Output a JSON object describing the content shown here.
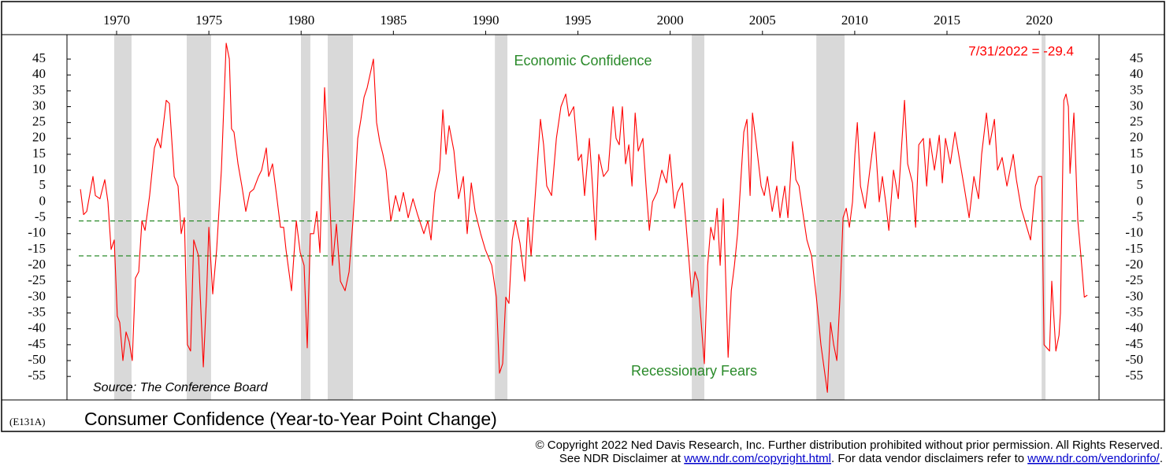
{
  "chart_data": {
    "type": "line",
    "title": "Consumer Confidence (Year-to-Year Point Change)",
    "chart_code": "(E131A)",
    "source": "Source: The Conference Board",
    "annotations": {
      "upper": "Economic Confidence",
      "lower": "Recessionary Fears",
      "latest": "7/31/2022 = -29.4"
    },
    "color": "#ff0000",
    "xlim": [
      1967.31,
      2023.24
    ],
    "ylim": [
      -62.4,
      52.7
    ],
    "xticks": [
      1970,
      1975,
      1980,
      1985,
      1990,
      1995,
      2000,
      2005,
      2010,
      2015,
      2020
    ],
    "yticks": [
      45,
      40,
      35,
      30,
      25,
      20,
      15,
      10,
      5,
      0,
      -5,
      -10,
      -15,
      -20,
      -25,
      -30,
      -35,
      -40,
      -45,
      -50,
      -55
    ],
    "reference_lines": [
      -6,
      -17
    ],
    "recessions": [
      [
        1969.87,
        1970.81
      ],
      [
        1973.8,
        1975.12
      ],
      [
        1979.99,
        1980.5
      ],
      [
        1981.44,
        1982.81
      ],
      [
        1990.5,
        1991.18
      ],
      [
        2001.17,
        2001.85
      ],
      [
        2007.92,
        2009.45
      ],
      [
        2020.13,
        2020.34
      ]
    ],
    "x": [
      1968.04,
      1968.21,
      1968.38,
      1968.72,
      1968.85,
      1969.1,
      1969.36,
      1969.53,
      1969.7,
      1969.87,
      1970.04,
      1970.17,
      1970.34,
      1970.51,
      1970.68,
      1970.85,
      1971.02,
      1971.2,
      1971.37,
      1971.54,
      1971.79,
      1972.05,
      1972.22,
      1972.39,
      1972.69,
      1972.86,
      1973.12,
      1973.33,
      1973.5,
      1973.67,
      1973.84,
      1974.01,
      1974.18,
      1974.44,
      1974.7,
      1974.87,
      1975.0,
      1975.21,
      1975.42,
      1975.68,
      1975.94,
      1976.11,
      1976.23,
      1976.36,
      1976.58,
      1976.79,
      1977.0,
      1977.22,
      1977.43,
      1977.69,
      1977.86,
      1978.11,
      1978.24,
      1978.45,
      1978.67,
      1978.88,
      1979.05,
      1979.18,
      1979.48,
      1979.74,
      1979.95,
      1980.16,
      1980.33,
      1980.5,
      1980.68,
      1980.85,
      1981.02,
      1981.27,
      1981.44,
      1981.7,
      1981.91,
      1982.13,
      1982.38,
      1982.6,
      1982.81,
      1983.07,
      1983.24,
      1983.41,
      1983.58,
      1983.92,
      1984.09,
      1984.26,
      1984.43,
      1984.6,
      1984.86,
      1985.12,
      1985.33,
      1985.54,
      1985.8,
      1986.06,
      1986.31,
      1986.65,
      1986.87,
      1987.04,
      1987.25,
      1987.51,
      1987.68,
      1987.85,
      1988.02,
      1988.28,
      1988.53,
      1988.79,
      1989.0,
      1989.22,
      1989.43,
      1989.73,
      1989.98,
      1990.33,
      1990.58,
      1990.75,
      1990.92,
      1991.09,
      1991.26,
      1991.44,
      1991.61,
      1991.86,
      1992.12,
      1992.29,
      1992.46,
      1992.72,
      1992.97,
      1993.14,
      1993.31,
      1993.57,
      1993.83,
      1994.08,
      1994.34,
      1994.51,
      1994.77,
      1995.02,
      1995.19,
      1995.36,
      1995.62,
      1995.79,
      1995.96,
      1996.13,
      1996.39,
      1996.64,
      1996.9,
      1997.07,
      1997.24,
      1997.41,
      1997.58,
      1997.76,
      1997.93,
      1998.1,
      1998.27,
      1998.52,
      1998.69,
      1998.87,
      1999.04,
      1999.29,
      1999.55,
      1999.8,
      1999.98,
      2000.23,
      2000.4,
      2000.66,
      2000.83,
      2001.04,
      2001.17,
      2001.34,
      2001.51,
      2001.68,
      2001.85,
      2002.03,
      2002.2,
      2002.37,
      2002.54,
      2002.71,
      2002.88,
      2003.14,
      2003.31,
      2003.48,
      2003.65,
      2003.82,
      2003.99,
      2004.16,
      2004.33,
      2004.46,
      2004.67,
      2004.93,
      2005.1,
      2005.27,
      2005.53,
      2005.78,
      2005.95,
      2006.21,
      2006.38,
      2006.64,
      2006.81,
      2006.98,
      2007.23,
      2007.41,
      2007.66,
      2007.92,
      2008.17,
      2008.52,
      2008.69,
      2008.86,
      2009.03,
      2009.2,
      2009.37,
      2009.54,
      2009.71,
      2009.88,
      2010.01,
      2010.14,
      2010.31,
      2010.57,
      2010.82,
      2011.08,
      2011.33,
      2011.5,
      2011.68,
      2011.85,
      2012.1,
      2012.36,
      2012.7,
      2012.87,
      2013.13,
      2013.3,
      2013.47,
      2013.72,
      2013.9,
      2014.07,
      2014.32,
      2014.58,
      2014.75,
      2014.92,
      2015.18,
      2015.43,
      2015.69,
      2015.95,
      2016.2,
      2016.46,
      2016.71,
      2016.88,
      2017.14,
      2017.31,
      2017.57,
      2017.74,
      2017.99,
      2018.25,
      2018.59,
      2018.76,
      2019.02,
      2019.28,
      2019.53,
      2019.79,
      2019.96,
      2020.13,
      2020.26,
      2020.56,
      2020.68,
      2020.9,
      2021.07,
      2021.15,
      2021.33,
      2021.45,
      2021.58,
      2021.67,
      2021.88,
      2022.09,
      2022.26,
      2022.44,
      2022.61
    ],
    "values": [
      4,
      -4,
      -3,
      8,
      2,
      1,
      7,
      0,
      -15,
      -12,
      -36,
      -38,
      -50,
      -41,
      -44,
      -50,
      -24,
      -22,
      -6,
      -9,
      2,
      17,
      20,
      17,
      32,
      31,
      8,
      5,
      -10,
      -5,
      -45,
      -47,
      -12,
      -17,
      -52,
      -30,
      -8,
      -29,
      -15,
      10,
      50,
      45,
      23,
      22,
      12,
      5,
      -3,
      3,
      4,
      8,
      10,
      17,
      8,
      12,
      2,
      -8,
      -8,
      -15,
      -28,
      -6,
      -16,
      -20,
      -46,
      -10,
      -10,
      -3,
      -16,
      36,
      17,
      -20,
      -7,
      -25,
      -28,
      -22,
      -6,
      20,
      26,
      33,
      36,
      45,
      25,
      19,
      15,
      10,
      -6,
      2,
      -3,
      3,
      -5,
      1,
      -4,
      -10,
      -6,
      -12,
      3,
      10,
      29,
      15,
      24,
      16,
      1,
      8,
      -10,
      6,
      -3,
      -10,
      -15,
      -20,
      -30,
      -54,
      -51,
      -30,
      -32,
      -12,
      -6,
      -13,
      -25,
      -5,
      -17,
      5,
      26,
      18,
      5,
      2,
      20,
      30,
      34,
      27,
      30,
      13,
      15,
      2,
      20,
      5,
      -12,
      15,
      8,
      10,
      30,
      20,
      18,
      30,
      12,
      18,
      5,
      28,
      16,
      20,
      5,
      -9,
      0,
      3,
      10,
      6,
      15,
      -2,
      3,
      6,
      -5,
      -20,
      -30,
      -22,
      -25,
      -38,
      -51,
      -20,
      -8,
      -12,
      -2,
      -20,
      1,
      -49,
      -28,
      -20,
      -10,
      6,
      22,
      26,
      2,
      28,
      18,
      5,
      2,
      8,
      -3,
      5,
      -5,
      5,
      -5,
      19,
      7,
      5,
      -5,
      -12,
      -17,
      -30,
      -45,
      -60,
      -38,
      -45,
      -50,
      -30,
      -5,
      -2,
      -8,
      0,
      15,
      25,
      5,
      -2,
      10,
      22,
      0,
      8,
      0,
      -9,
      10,
      1,
      32,
      12,
      6,
      -8,
      18,
      20,
      5,
      20,
      10,
      21,
      6,
      20,
      12,
      22,
      13,
      4,
      -5,
      8,
      1,
      15,
      28,
      18,
      26,
      10,
      14,
      5,
      15,
      7,
      -2,
      -7,
      -12,
      5,
      8,
      8,
      -45,
      -47,
      -25,
      -47,
      -42,
      -35,
      32,
      34,
      30,
      9,
      28,
      -6,
      -17,
      -30,
      -29.4
    ]
  },
  "footer": {
    "copyright": "© Copyright 2022 Ned Davis Research, Inc.  Further distribution prohibited without prior permission.  All Rights Reserved.",
    "disclaimer_a": "See NDR Disclaimer at ",
    "link_a": "www.ndr.com/copyright.html",
    "disclaimer_b": ". For data vendor disclaimers refer to ",
    "link_b": "www.ndr.com/vendorinfo/",
    "disclaimer_c": "."
  }
}
